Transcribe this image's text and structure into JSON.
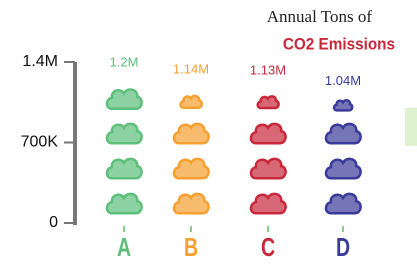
{
  "chart_data": {
    "type": "pictograph",
    "title": "Annual Tons of",
    "subtitle": "CO2 Emissions",
    "categories": [
      "A",
      "B",
      "C",
      "D"
    ],
    "values": [
      1200000,
      1140000,
      1130000,
      1040000
    ],
    "value_labels": [
      "1.2M",
      "1.14M",
      "1.13M",
      "1.04M"
    ],
    "colors": [
      "#5cbf7a",
      "#f5a030",
      "#c8283a",
      "#3a3a9a"
    ],
    "ylim": [
      0,
      1400000
    ],
    "yticks": [
      0,
      {
        "value": 700000,
        "label": "700K"
      },
      {
        "value": 1400000,
        "label": "1.4M"
      }
    ]
  }
}
